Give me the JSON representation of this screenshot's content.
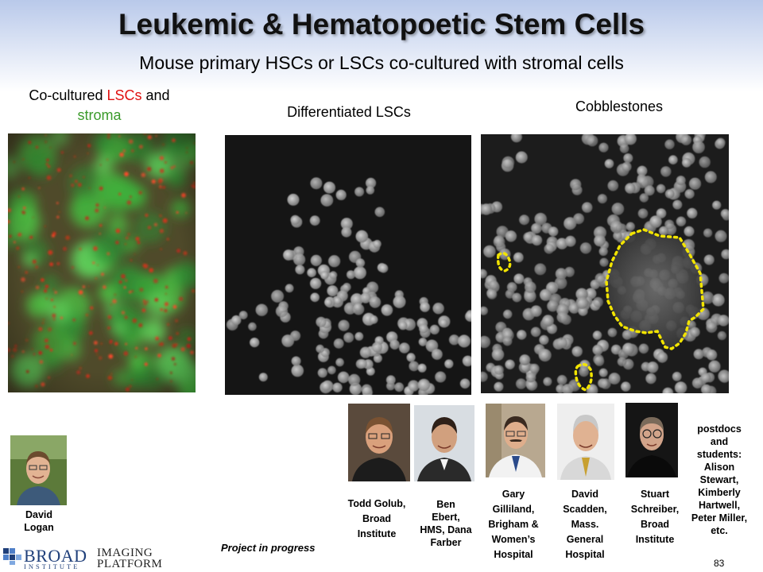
{
  "slide": {
    "title": "Leukemic & Hematopoetic Stem Cells",
    "subtitle": "Mouse primary HSCs or LSCs co-cultured with stromal cells",
    "page_number": "83",
    "status": "Project in progress"
  },
  "captions": {
    "coculture_part1": "Co-cultured",
    "coculture_lscs": "LSCs",
    "coculture_and": "and",
    "coculture_stroma": "stroma",
    "differentiated": "Differentiated LSCs",
    "cobblestones": "Cobblestones"
  },
  "colors": {
    "lscs": "#e01010",
    "stroma": "#3a9a2a",
    "outline": "#f2e400",
    "title_bg": "#b9c9ea"
  },
  "people": {
    "logan": [
      "David",
      "Logan"
    ],
    "golub": [
      "Todd Golub,",
      "Broad",
      "Institute"
    ],
    "ebert": [
      "Ben",
      "Ebert,",
      "HMS, Dana",
      "Farber"
    ],
    "gilliland": [
      "Gary",
      "Gilliland,",
      "Brigham &",
      "Women’s",
      "Hospital"
    ],
    "scadden": [
      "David",
      "Scadden,",
      "Mass.",
      "General",
      "Hospital"
    ],
    "schreiber": [
      "Stuart",
      "Schreiber,",
      "Broad",
      "Institute"
    ],
    "postdocs": [
      "postdocs",
      "and",
      "students:",
      "Alison",
      "Stewart,",
      "Kimberly",
      "Hartwell,",
      "Peter Miller,",
      "etc."
    ]
  },
  "logos": {
    "broad": "BROAD",
    "broad_sub": "INSTITUTE",
    "imaging_line1": "IMAGING",
    "imaging_line2": "PLATFORM"
  }
}
